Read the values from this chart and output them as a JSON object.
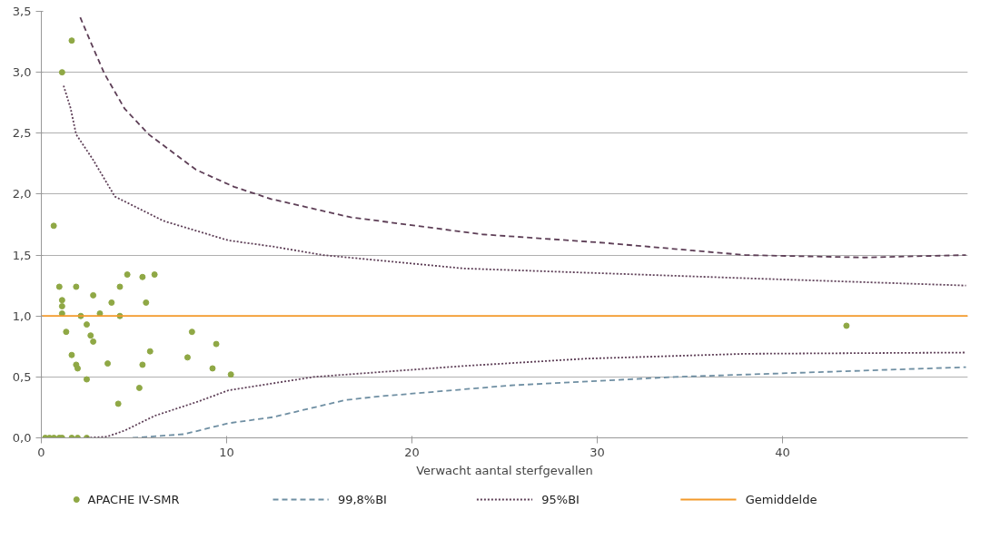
{
  "chart_data": {
    "type": "scatter",
    "xlabel": "Verwacht aantal sterfgevallen",
    "xlim": [
      0,
      50
    ],
    "xticks": [
      0,
      10,
      20,
      30,
      40
    ],
    "ylim": [
      0,
      3.5
    ],
    "yticks": [
      {
        "value": 0,
        "label": "0,0"
      },
      {
        "value": 0.5,
        "label": "0,5"
      },
      {
        "value": 1,
        "label": "1,0"
      },
      {
        "value": 1.5,
        "label": "1,5"
      },
      {
        "value": 2,
        "label": "2,0"
      },
      {
        "value": 2.5,
        "label": "2,5"
      },
      {
        "value": 3,
        "label": "3,0"
      },
      {
        "value": 3.5,
        "label": "3,5"
      }
    ],
    "grid": "y",
    "legend": "bottom",
    "series": [
      {
        "name": "APACHE IV-SMR",
        "marker": "circle",
        "color": "#8fa845",
        "x": [
          0.21,
          0.44,
          0.68,
          0.97,
          1.12,
          1.64,
          1.96,
          2.45,
          0.67,
          0.97,
          1.12,
          1.12,
          1.12,
          1.34,
          1.64,
          1.88,
          1.96,
          1.88,
          2.13,
          2.45,
          2.45,
          2.66,
          2.8,
          2.8,
          3.16,
          3.58,
          3.79,
          4.15,
          4.24,
          4.24,
          4.64,
          5.29,
          5.46,
          5.46,
          5.65,
          5.87,
          6.11,
          7.89,
          8.13,
          9.24,
          9.44,
          10.23,
          1.12,
          1.64,
          43.45
        ],
        "values": [
          0,
          0,
          0,
          0,
          0,
          0,
          0,
          0,
          1.74,
          1.24,
          1.13,
          1.08,
          1.02,
          0.87,
          0.68,
          0.6,
          0.57,
          1.24,
          1.0,
          0.93,
          0.48,
          0.84,
          1.17,
          0.79,
          1.02,
          0.61,
          1.11,
          0.28,
          1.24,
          1.0,
          1.34,
          0.41,
          1.32,
          0.6,
          1.11,
          0.71,
          1.34,
          0.66,
          0.87,
          0.57,
          0.77,
          0.52,
          3.0,
          3.26,
          0.92
        ]
      },
      {
        "name": "99,8%BI",
        "type": "line",
        "line_style": "dashed",
        "color": "#6f8fa3",
        "x": [
          4.93,
          7.7,
          10.1,
          12.5,
          16.4,
          18.2,
          25.3,
          34.2,
          49.9
        ],
        "values": [
          0,
          0.03,
          0.12,
          0.17,
          0.31,
          0.34,
          0.43,
          0.5,
          0.58
        ]
      },
      {
        "type": "line",
        "line_style": "dashed",
        "color": "#5e3f57",
        "x": [
          2.1,
          2.77,
          3.4,
          4.5,
          5.8,
          8.35,
          10.4,
          12.4,
          16.7,
          23.8,
          30.4,
          38.0,
          44.4,
          49.9
        ],
        "values": [
          3.45,
          3.21,
          2.99,
          2.7,
          2.49,
          2.2,
          2.06,
          1.96,
          1.81,
          1.67,
          1.6,
          1.5,
          1.48,
          1.5
        ]
      },
      {
        "name": "95%BI",
        "type": "line",
        "line_style": "dotted",
        "color": "#5e3f57",
        "x": [
          1.2,
          1.57,
          1.88,
          2.76,
          3.97,
          6.6,
          10.1,
          12.5,
          15.2,
          22.8,
          30.4,
          38.0,
          49.9
        ],
        "values": [
          2.89,
          2.71,
          2.49,
          2.29,
          1.98,
          1.78,
          1.62,
          1.57,
          1.5,
          1.39,
          1.35,
          1.31,
          1.25
        ]
      },
      {
        "type": "line",
        "line_style": "dotted",
        "color": "#5e3f57",
        "x": [
          2.45,
          3.55,
          4.5,
          6.1,
          8.5,
          10.1,
          14.7,
          22.8,
          29.4,
          38.0,
          49.9
        ],
        "values": [
          0,
          0.01,
          0.06,
          0.18,
          0.3,
          0.39,
          0.5,
          0.59,
          0.65,
          0.69,
          0.7
        ]
      },
      {
        "name": "Gemiddelde",
        "type": "line",
        "line_style": "solid",
        "color": "#f39a2b",
        "x": [
          0,
          50
        ],
        "values": [
          1,
          1
        ]
      }
    ]
  }
}
